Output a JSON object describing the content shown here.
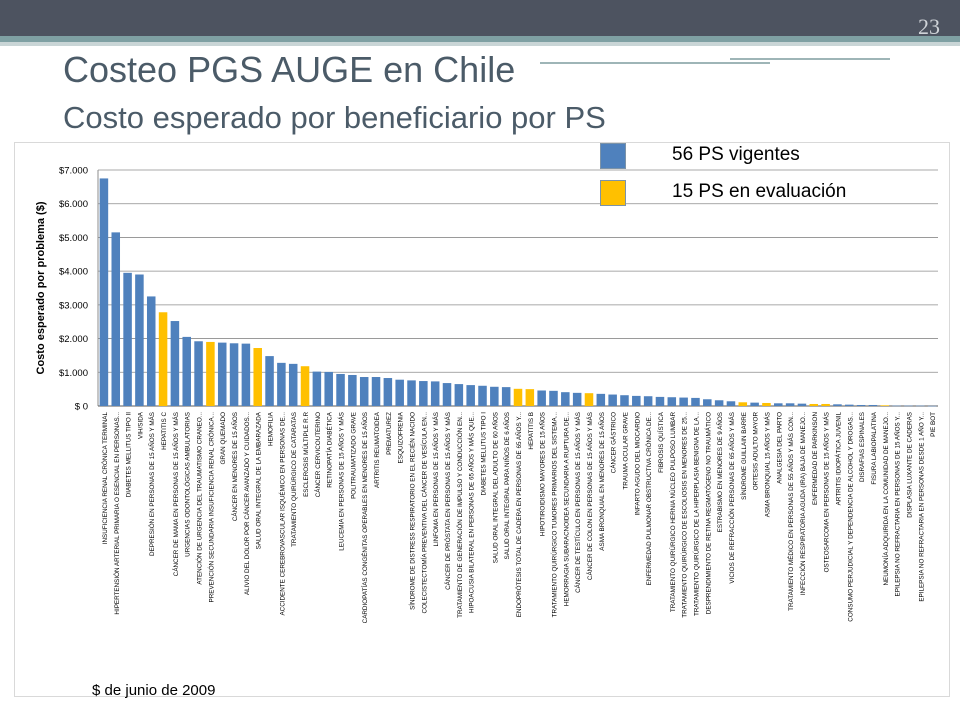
{
  "slide": {
    "page_number": "23",
    "title": "Costeo PGS AUGE en Chile",
    "subtitle": "Costo esperado por beneficiario por PS",
    "footnote": "$ de junio de 2009"
  },
  "legend": [
    {
      "label": "56 PS vigentes",
      "color": "#4f81bd"
    },
    {
      "label": "15 PS en evaluación",
      "color": "#ffc000"
    }
  ],
  "chart_data": {
    "type": "bar",
    "title": "",
    "xlabel": "",
    "ylabel": "Costo esperado por problema ($)",
    "ylim": [
      0,
      7000
    ],
    "yticks": [
      "$ 0",
      "$1.000",
      "$2.000",
      "$3.000",
      "$4.000",
      "$5.000",
      "$6.000",
      "$7.000"
    ],
    "grid": true,
    "series_colors": {
      "vigente": "#4f81bd",
      "evaluacion": "#ffc000"
    },
    "categories": [
      "INSUFICIENCIA RENAL CRÓNICA TERMINAL",
      "HIPERTENSIÓN ARTERIAL PRIMARIA O ESENCIAL EN PERSONAS...",
      "DIABETES MELLITUS TIPO II",
      "VIH/SIDA",
      "DEPRESIÓN EN PERSONAS DE 15 AÑOS Y MÁS",
      "HEPATITIS C",
      "CÁNCER DE MAMA EN PERSONAS DE 15 AÑOS Y MÁS",
      "URGENCIAS ODONTOLÓGICAS AMBULATORIAS",
      "ATENCIÓN DE URGENCIA DEL TRAUMATISMO CRANEO...",
      "PREVENCIÓN SECUNDARIA INSUFICIENCIA RENAL CRÓNICA...",
      "GRAN QUEMADO",
      "CÁNCER EN MENORES DE 15 AÑOS",
      "ALIVIO DEL DOLOR POR CÁNCER AVANZADO Y CUIDADOS...",
      "SALUD ORAL INTEGRAL DE LA EMBARAZADA",
      "HEMOFILIA",
      "ACCIDENTE CEREBROVASCULAR ISQUÉMICO EN PERSONAS DE...",
      "TRATAMIENTO QUIRÚRGICO DE CATARATAS",
      "ESCLEROSIS MÚLTIPLE R.R",
      "CÁNCER CERVICOUTERINO",
      "RETINOPATÍA DIABÉTICA",
      "LEUCEMIA EN PERSONAS DE 15 AÑOS Y MÁS",
      "POLITRAUMATIZADO GRAVE",
      "CARDIOPATÍAS CONGÉNITAS OPERABLES EN MENORES DE 15 AÑOS",
      "ARTRITIS REUMATOIDEA",
      "PREMATUREZ",
      "ESQUIZOFRENIA",
      "SÍNDROME DE DISTRESS RESPIRATORIO EN EL RECIÉN NACIDO",
      "COLECISTECTOMÍA PREVENTIVA DEL CÁNCER DE VESÍCULA EN...",
      "LINFOMA EN PERSONAS DE 15 AÑOS Y MÁS",
      "CÁNCER DE PRÓSTATA EN PERSONAS DE 15 AÑOS Y MÁS",
      "TRATAMIENTO DE GENERACIÓN DE IMPULSO Y CONDUCCIÓN EN...",
      "HIPOACUSIA BILATERAL EN PERSONAS DE 65 AÑOS Y MÁS QUE...",
      "DIABETES MELLITUS TIPO I",
      "SALUD ORAL INTEGRAL DEL ADULTO DE 60 AÑOS",
      "SALUD ORAL INTEGRAL PARA NIÑOS DE 6 AÑOS",
      "ENDOPRÓTESIS TOTAL DE CADERA EN PERSONAS DE 65 AÑOS Y...",
      "HEPATITIS B",
      "HIPOTIROIDISMO MAYORES DE 15 AÑOS",
      "TRATAMIENTO QUIRÚRGICO TUMORES PRIMARIOS DEL SISTEMA...",
      "HEMORRAGIA SUBARACNOIDEA SECUNDARIA A RUPTURA DE...",
      "CÁNCER DE TESTÍCULO EN PERSONAS DE 15 AÑOS Y MÁS",
      "CÁNCER DE COLON EN PERSONAS DE 15 AÑOS Y MÁS",
      "ASMA BRONQUIAL EN MENORES DE 15 AÑOS",
      "CÁNCER GÁSTRICO",
      "TRAUMA OCULAR GRAVE",
      "INFARTO AGUDO DEL MIOCARDIO",
      "ENFERMEDAD PULMONAR OBSTRUCTIVA CRÓNICA DE...",
      "FIBROSIS QUÍSTICA",
      "TRATAMIENTO QUIRÚRGICO HERNIA NÚCLEO PULPOSO LUMBAR",
      "TRATAMIENTO QUIRÚRGICO DE ESCOLIOSIS EN MENORES DE 25...",
      "TRATAMIENTO QUIRÚRGICO DE LA HIPERPLASIA BENIGNA DE LA...",
      "DESPRENDIMIENTO DE RETINA REGMATÓGENO NO TRAUMÁTICO",
      "ESTRABISMO EN MENORES DE 9 AÑOS",
      "VICIOS DE REFRACCIÓN PERSONAS DE 65 AÑOS Y MÁS",
      "SÍNDROME GUILLAIN BARRE",
      "ORTESIS ADULTO MAYOR",
      "ASMA BRONQUIAL 15 AÑOS Y MÁS",
      "ANALGESIA DEL PARTO",
      "TRATAMIENTO MÉDICO EN PERSONAS DE 55 AÑOS Y MÁS CON...",
      "INFECCIÓN RESPIRATORIA AGUDA (IRA) BAJA DE MANEJO...",
      "ENFERMEDAD DE PARKINSON",
      "OSTEOSARCOMA EN PERSONAS DE 15 AÑOS Y MÁS",
      "ARTRITIS IDIOPÁTICA JUVENIL",
      "CONSUMO PERJUDICIAL Y DEPENDENCIA DE ALCOHOL Y DROGAS...",
      "DISRAFIAS ESPINALES",
      "FISURA LABIOPALATINA",
      "NEUMONÍA ADQUIRIDA EN LA COMUNIDAD DE MANEJO...",
      "EPILEPSIA NO REFRACTARIA EN PERSONAS DE 15 AÑOS Y...",
      "DISPLASIA LUXANTE DE CADERAS",
      "EPILEPSIA NO REFRACTARIA EN PERSONAS DESDE 1 AÑO Y...",
      "PIE BOT"
    ],
    "values": [
      6750,
      5150,
      3950,
      3900,
      3250,
      2780,
      2520,
      2050,
      1920,
      1900,
      1880,
      1860,
      1850,
      1720,
      1480,
      1280,
      1250,
      1180,
      1020,
      1010,
      950,
      920,
      860,
      860,
      830,
      780,
      760,
      740,
      730,
      680,
      650,
      620,
      600,
      570,
      560,
      510,
      500,
      460,
      450,
      410,
      390,
      380,
      360,
      340,
      320,
      300,
      290,
      270,
      260,
      250,
      240,
      200,
      170,
      140,
      110,
      100,
      90,
      80,
      80,
      70,
      60,
      60,
      50,
      40,
      30,
      30,
      20,
      10,
      10,
      10,
      5
    ],
    "groups": [
      "v",
      "v",
      "v",
      "v",
      "v",
      "e",
      "v",
      "v",
      "v",
      "e",
      "v",
      "v",
      "v",
      "e",
      "v",
      "v",
      "v",
      "e",
      "v",
      "v",
      "v",
      "v",
      "v",
      "v",
      "v",
      "v",
      "v",
      "v",
      "v",
      "v",
      "v",
      "v",
      "v",
      "v",
      "v",
      "e",
      "e",
      "v",
      "v",
      "v",
      "v",
      "e",
      "v",
      "v",
      "v",
      "v",
      "v",
      "v",
      "v",
      "v",
      "v",
      "v",
      "v",
      "v",
      "e",
      "v",
      "e",
      "v",
      "v",
      "v",
      "e",
      "e",
      "v",
      "v",
      "v",
      "v",
      "e",
      "v",
      "v",
      "v",
      "v"
    ]
  }
}
